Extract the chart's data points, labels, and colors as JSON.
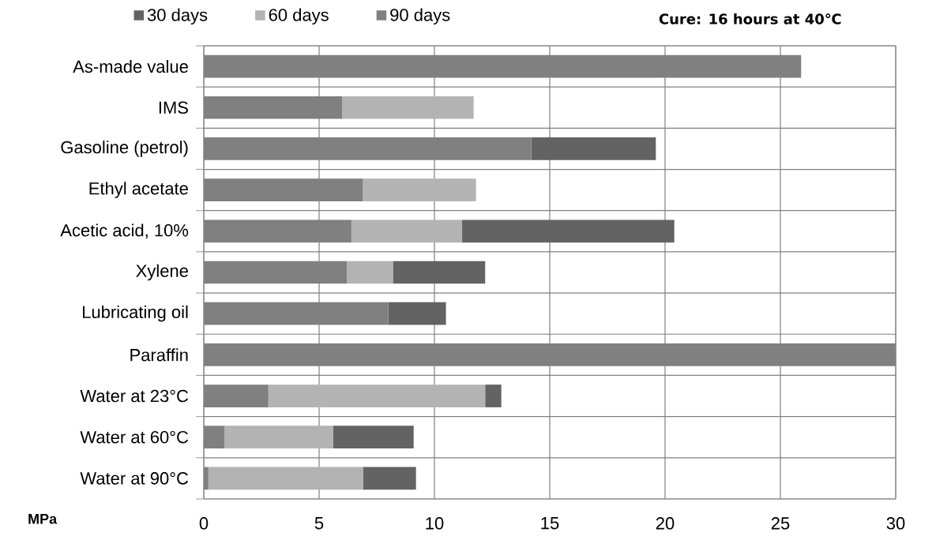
{
  "chart_data": {
    "type": "bar",
    "orientation": "horizontal",
    "stacked": true,
    "categories": [
      "As-made value",
      "IMS",
      "Gasoline (petrol)",
      "Ethyl acetate",
      "Acetic acid, 10%",
      "Xylene",
      "Lubricating oil",
      "Paraffin",
      "Water at 23°C",
      "Water at 60°C",
      "Water at 90°C"
    ],
    "series": [
      {
        "name": "90 days",
        "color": "#808080",
        "values": [
          25.9,
          6.0,
          14.2,
          6.9,
          6.4,
          6.2,
          8.0,
          30,
          2.8,
          0.9,
          0.2
        ]
      },
      {
        "name": "60 days",
        "color": "#b3b3b3",
        "values": [
          null,
          5.7,
          null,
          4.9,
          4.8,
          2.0,
          null,
          null,
          9.4,
          4.7,
          6.7
        ]
      },
      {
        "name": "30 days",
        "color": "#636363",
        "values": [
          null,
          null,
          5.4,
          null,
          9.2,
          4.0,
          2.5,
          null,
          0.7,
          3.5,
          2.3
        ]
      }
    ],
    "xlabel": "MPa",
    "xlim": [
      0,
      30
    ],
    "xticks": [
      0,
      5,
      10,
      15,
      20,
      25,
      30
    ],
    "grid": true,
    "legend": "top",
    "annotations": [
      "Cure: 16 hours at 40℃"
    ]
  }
}
